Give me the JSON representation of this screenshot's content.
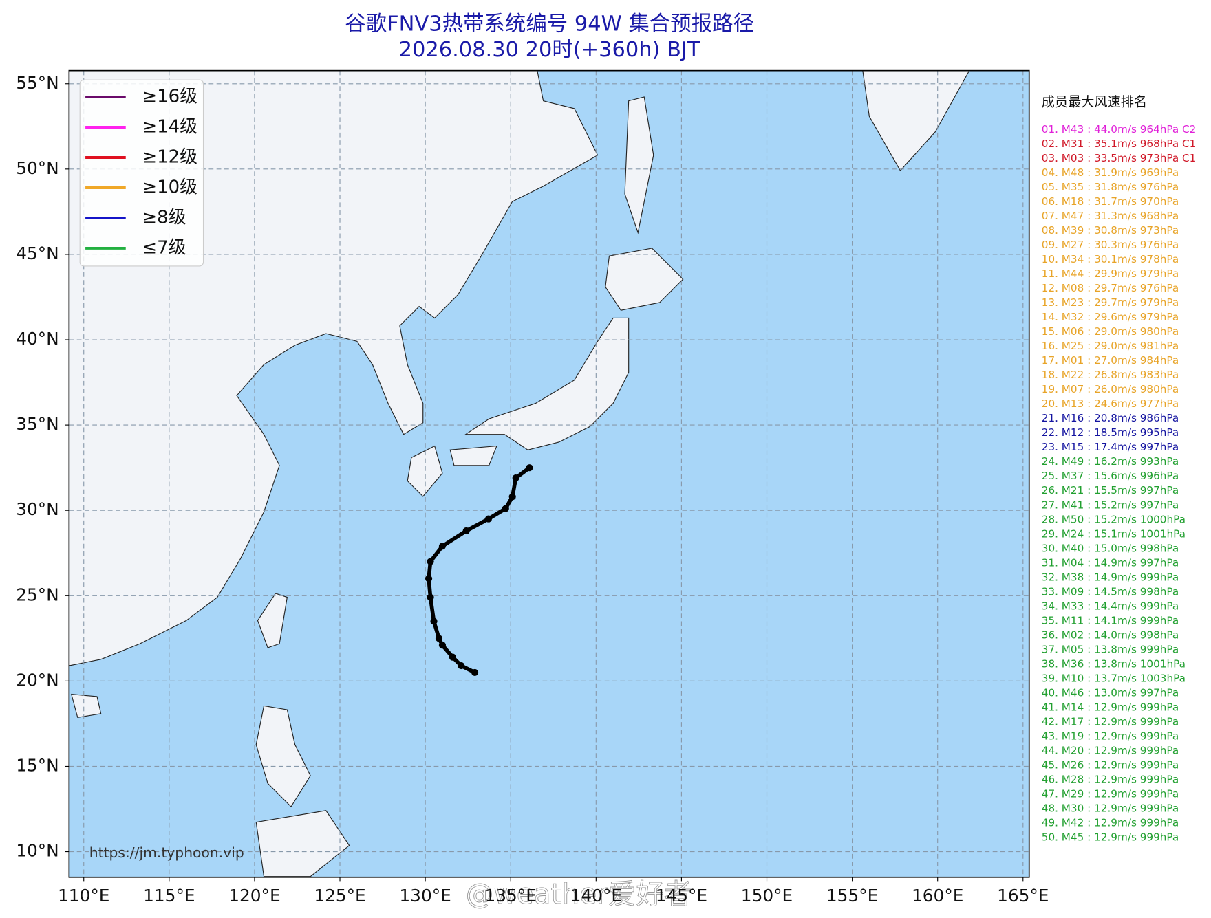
{
  "chart_data": {
    "type": "line",
    "title": "谷歌FNV3热带系统编号 94W 集合预报路径",
    "subtitle": "2026.08.30 20时(+360h) BJT",
    "xlim": [
      109.14,
      165.36
    ],
    "ylim": [
      8.5,
      55.77
    ],
    "grid": true,
    "xticks": [
      {
        "value": 110,
        "label": "110°E"
      },
      {
        "value": 115,
        "label": "115°E"
      },
      {
        "value": 120,
        "label": "120°E"
      },
      {
        "value": 125,
        "label": "125°E"
      },
      {
        "value": 130,
        "label": "130°E"
      },
      {
        "value": 135,
        "label": "135°E"
      },
      {
        "value": 140,
        "label": "140°E"
      },
      {
        "value": 145,
        "label": "145°E"
      },
      {
        "value": 150,
        "label": "150°E"
      },
      {
        "value": 155,
        "label": "155°E"
      },
      {
        "value": 160,
        "label": "160°E"
      },
      {
        "value": 165,
        "label": "165°E"
      }
    ],
    "yticks": [
      {
        "value": 10,
        "label": "10°N"
      },
      {
        "value": 15,
        "label": "15°N"
      },
      {
        "value": 20,
        "label": "20°N"
      },
      {
        "value": 25,
        "label": "25°N"
      },
      {
        "value": 30,
        "label": "30°N"
      },
      {
        "value": 35,
        "label": "35°N"
      },
      {
        "value": 40,
        "label": "40°N"
      },
      {
        "value": 45,
        "label": "45°N"
      },
      {
        "value": 50,
        "label": "50°N"
      },
      {
        "value": 55,
        "label": "55°N"
      }
    ],
    "legend": {
      "corner": "upper left",
      "items": [
        {
          "label": "≥16级",
          "color": "#6a0a6a"
        },
        {
          "label": "≥14级",
          "color": "#ff22ee"
        },
        {
          "label": "≥12级",
          "color": "#e01020"
        },
        {
          "label": "≥10级",
          "color": "#f0a828"
        },
        {
          "label": "≥8级",
          "color": "#1414c8"
        },
        {
          "label": "≤7级",
          "color": "#22b040"
        }
      ]
    },
    "series": [
      {
        "color": "#000000",
        "x": [
          132.9,
          132.1,
          131.6,
          131.0,
          130.8,
          130.5,
          130.3,
          130.2,
          130.3,
          131.0,
          132.4,
          133.7,
          134.7,
          135.1,
          135.3,
          136.1
        ],
        "values": [
          20.5,
          20.9,
          21.4,
          22.1,
          22.5,
          23.5,
          24.9,
          26.0,
          27.0,
          27.9,
          28.8,
          29.5,
          30.1,
          30.8,
          31.9,
          32.5
        ]
      }
    ]
  },
  "ranking": {
    "title": "成员最大风速排名",
    "items": [
      {
        "text": "01. M43 : 44.0m/s 964hPa C2",
        "color": "#e020d8"
      },
      {
        "text": "02. M31 : 35.1m/s 968hPa C1",
        "color": "#d01828"
      },
      {
        "text": "03. M03 : 33.5m/s 973hPa C1",
        "color": "#d01828"
      },
      {
        "text": "04. M48 : 31.9m/s 969hPa",
        "color": "#e8a428"
      },
      {
        "text": "05. M35 : 31.8m/s 976hPa",
        "color": "#e8a428"
      },
      {
        "text": "06. M18 : 31.7m/s 970hPa",
        "color": "#e8a428"
      },
      {
        "text": "07. M47 : 31.3m/s 968hPa",
        "color": "#e8a428"
      },
      {
        "text": "08. M39 : 30.8m/s 973hPa",
        "color": "#e8a428"
      },
      {
        "text": "09. M27 : 30.3m/s 976hPa",
        "color": "#e8a428"
      },
      {
        "text": "10. M34 : 30.1m/s 978hPa",
        "color": "#e8a428"
      },
      {
        "text": "11. M44 : 29.9m/s 979hPa",
        "color": "#e8a428"
      },
      {
        "text": "12. M08 : 29.7m/s 976hPa",
        "color": "#e8a428"
      },
      {
        "text": "13. M23 : 29.7m/s 979hPa",
        "color": "#e8a428"
      },
      {
        "text": "14. M32 : 29.6m/s 979hPa",
        "color": "#e8a428"
      },
      {
        "text": "15. M06 : 29.0m/s 980hPa",
        "color": "#e8a428"
      },
      {
        "text": "16. M25 : 29.0m/s 981hPa",
        "color": "#e8a428"
      },
      {
        "text": "17. M01 : 27.0m/s 984hPa",
        "color": "#e8a428"
      },
      {
        "text": "18. M22 : 26.8m/s 983hPa",
        "color": "#e8a428"
      },
      {
        "text": "19. M07 : 26.0m/s 980hPa",
        "color": "#e8a428"
      },
      {
        "text": "20. M13 : 24.6m/s 977hPa",
        "color": "#e8a428"
      },
      {
        "text": "21. M16 : 20.8m/s 986hPa",
        "color": "#1414a0"
      },
      {
        "text": "22. M12 : 18.5m/s 995hPa",
        "color": "#1414a0"
      },
      {
        "text": "23. M15 : 17.4m/s 997hPa",
        "color": "#1414a0"
      },
      {
        "text": "24. M49 : 16.2m/s 993hPa",
        "color": "#22a030"
      },
      {
        "text": "25. M37 : 15.6m/s 996hPa",
        "color": "#22a030"
      },
      {
        "text": "26. M21 : 15.5m/s 997hPa",
        "color": "#22a030"
      },
      {
        "text": "27. M41 : 15.2m/s 997hPa",
        "color": "#22a030"
      },
      {
        "text": "28. M50 : 15.2m/s 1000hPa",
        "color": "#22a030"
      },
      {
        "text": "29. M24 : 15.1m/s 1001hPa",
        "color": "#22a030"
      },
      {
        "text": "30. M40 : 15.0m/s 998hPa",
        "color": "#22a030"
      },
      {
        "text": "31. M04 : 14.9m/s 997hPa",
        "color": "#22a030"
      },
      {
        "text": "32. M38 : 14.9m/s 999hPa",
        "color": "#22a030"
      },
      {
        "text": "33. M09 : 14.5m/s 998hPa",
        "color": "#22a030"
      },
      {
        "text": "34. M33 : 14.4m/s 999hPa",
        "color": "#22a030"
      },
      {
        "text": "35. M11 : 14.1m/s 999hPa",
        "color": "#22a030"
      },
      {
        "text": "36. M02 : 14.0m/s 998hPa",
        "color": "#22a030"
      },
      {
        "text": "37. M05 : 13.8m/s 999hPa",
        "color": "#22a030"
      },
      {
        "text": "38. M36 : 13.8m/s 1001hPa",
        "color": "#22a030"
      },
      {
        "text": "39. M10 : 13.7m/s 1003hPa",
        "color": "#22a030"
      },
      {
        "text": "40. M46 : 13.0m/s 997hPa",
        "color": "#22a030"
      },
      {
        "text": "41. M14 : 12.9m/s 999hPa",
        "color": "#22a030"
      },
      {
        "text": "42. M17 : 12.9m/s 999hPa",
        "color": "#22a030"
      },
      {
        "text": "43. M19 : 12.9m/s 999hPa",
        "color": "#22a030"
      },
      {
        "text": "44. M20 : 12.9m/s 999hPa",
        "color": "#22a030"
      },
      {
        "text": "45. M26 : 12.9m/s 999hPa",
        "color": "#22a030"
      },
      {
        "text": "46. M28 : 12.9m/s 999hPa",
        "color": "#22a030"
      },
      {
        "text": "47. M29 : 12.9m/s 999hPa",
        "color": "#22a030"
      },
      {
        "text": "48. M30 : 12.9m/s 999hPa",
        "color": "#22a030"
      },
      {
        "text": "49. M42 : 12.9m/s 999hPa",
        "color": "#22a030"
      },
      {
        "text": "50. M45 : 12.9m/s 999hPa",
        "color": "#22a030"
      }
    ]
  },
  "source_url": "https://jm.typhoon.vip",
  "watermark": "@weather爱好者"
}
